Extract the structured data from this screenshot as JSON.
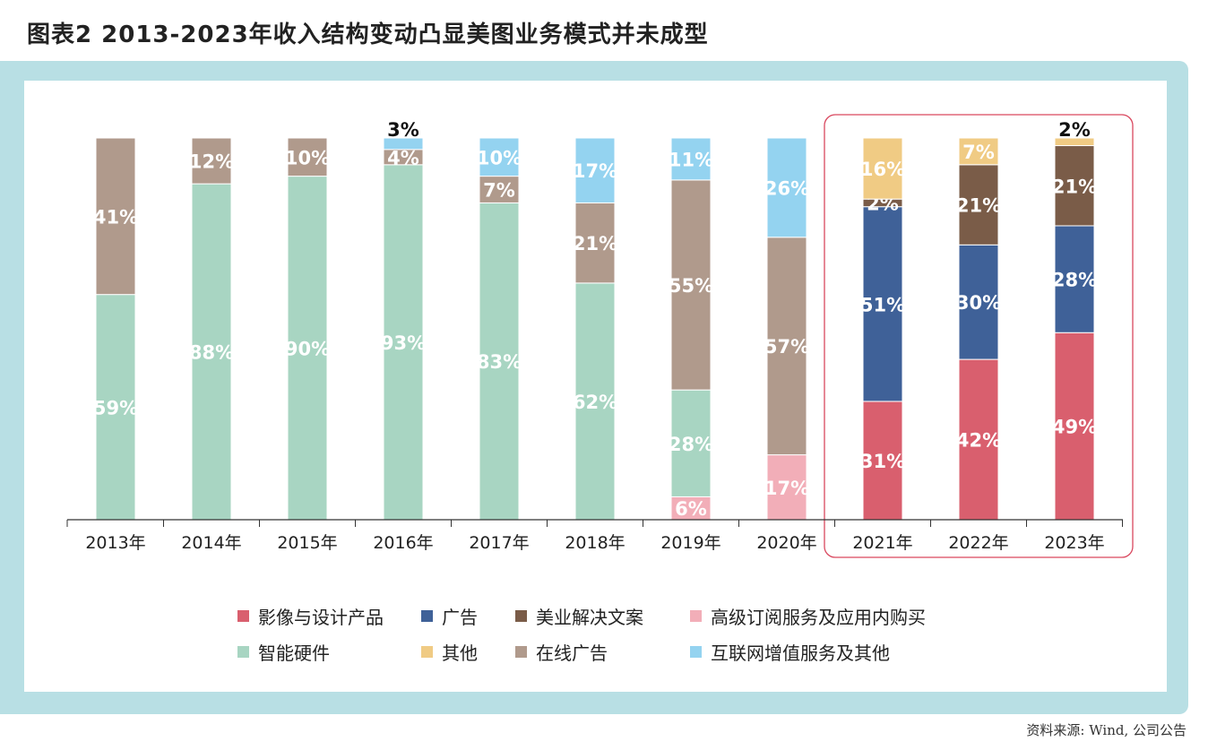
{
  "title": "图表2  2013-2023年收入结构变动凸显美图业务模式并未成型",
  "source": "资料来源: Wind, 公司公告",
  "chart_data": {
    "type": "bar",
    "stacked": true,
    "unit": "%",
    "categories": [
      "2013年",
      "2014年",
      "2015年",
      "2016年",
      "2017年",
      "2018年",
      "2019年",
      "2020年",
      "2021年",
      "2022年",
      "2023年"
    ],
    "ylim": [
      0,
      100
    ],
    "grid": false,
    "legend_position": "bottom",
    "highlight_categories": [
      "2021年",
      "2022年",
      "2023年"
    ],
    "highlight_color": "#d9475e",
    "series": [
      {
        "name": "高级订阅服务及应用内购买",
        "color": "#f2aeb8",
        "values": [
          null,
          null,
          null,
          null,
          null,
          null,
          6,
          17,
          null,
          null,
          null
        ]
      },
      {
        "name": "智能硬件",
        "color": "#a8d5c2",
        "values": [
          59,
          88,
          90,
          93,
          83,
          62,
          28,
          null,
          null,
          null,
          null
        ]
      },
      {
        "name": "在线广告",
        "color": "#b09a8c",
        "values": [
          41,
          12,
          10,
          4,
          7,
          21,
          55,
          57,
          null,
          null,
          null
        ]
      },
      {
        "name": "互联网增值服务及其他",
        "color": "#94d3f0",
        "values": [
          null,
          null,
          null,
          3,
          10,
          17,
          11,
          26,
          null,
          null,
          null
        ]
      },
      {
        "name": "影像与设计产品",
        "color": "#d95f6e",
        "values": [
          null,
          null,
          null,
          null,
          null,
          null,
          null,
          null,
          31,
          42,
          49
        ]
      },
      {
        "name": "广告",
        "color": "#3f6198",
        "values": [
          null,
          null,
          null,
          null,
          null,
          null,
          null,
          null,
          51,
          30,
          28
        ]
      },
      {
        "name": "美业解决文案",
        "color": "#7a5c48",
        "values": [
          null,
          null,
          null,
          null,
          null,
          null,
          null,
          null,
          2,
          21,
          21
        ]
      },
      {
        "name": "其他",
        "color": "#f0cb84",
        "values": [
          null,
          null,
          null,
          null,
          null,
          null,
          null,
          null,
          16,
          7,
          2
        ]
      }
    ],
    "legend_order": [
      "影像与设计产品",
      "广告",
      "美业解决文案",
      "高级订阅服务及应用内购买",
      "智能硬件",
      "其他",
      "在线广告",
      "互联网增值服务及其他"
    ]
  }
}
